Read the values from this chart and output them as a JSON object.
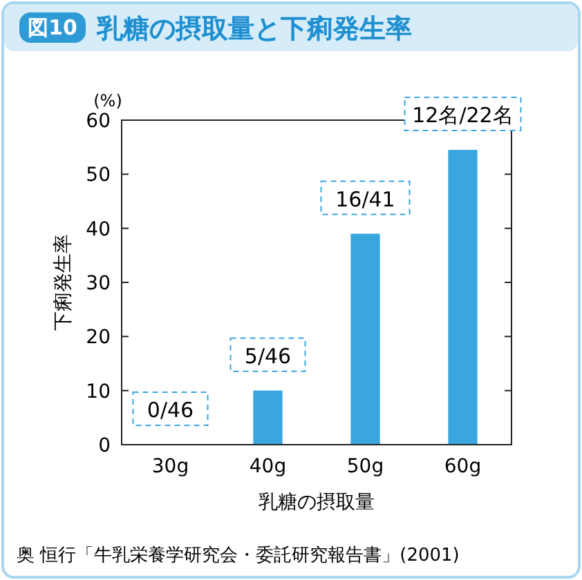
{
  "chart_data": {
    "type": "bar",
    "title": "図10 乳糖の摂取量と下痢発生率",
    "xlabel": "乳糖の摂取量",
    "ylabel": "下痢発生率",
    "annotations": [
      "(%)",
      "奥 恒行「牛乳栄養学研究会・委託研究報告書」(2001)",
      {
        "text": "0/46",
        "x": "30g",
        "y": 0
      },
      {
        "text": "5/46",
        "x": "40g",
        "y": 10
      },
      {
        "text": "16/41",
        "x": "50g",
        "y": 39
      },
      {
        "text": "12名/22名",
        "x": "60g",
        "y": 54.5
      }
    ],
    "categories": [
      "30g",
      "40g",
      "50g",
      "60g"
    ],
    "values": [
      0,
      10,
      39,
      54.5
    ],
    "color": "#3aa6e0",
    "ylim": [
      0,
      60
    ],
    "yticks": [
      0,
      10,
      20,
      30,
      40,
      50,
      60
    ],
    "grid": false
  }
}
